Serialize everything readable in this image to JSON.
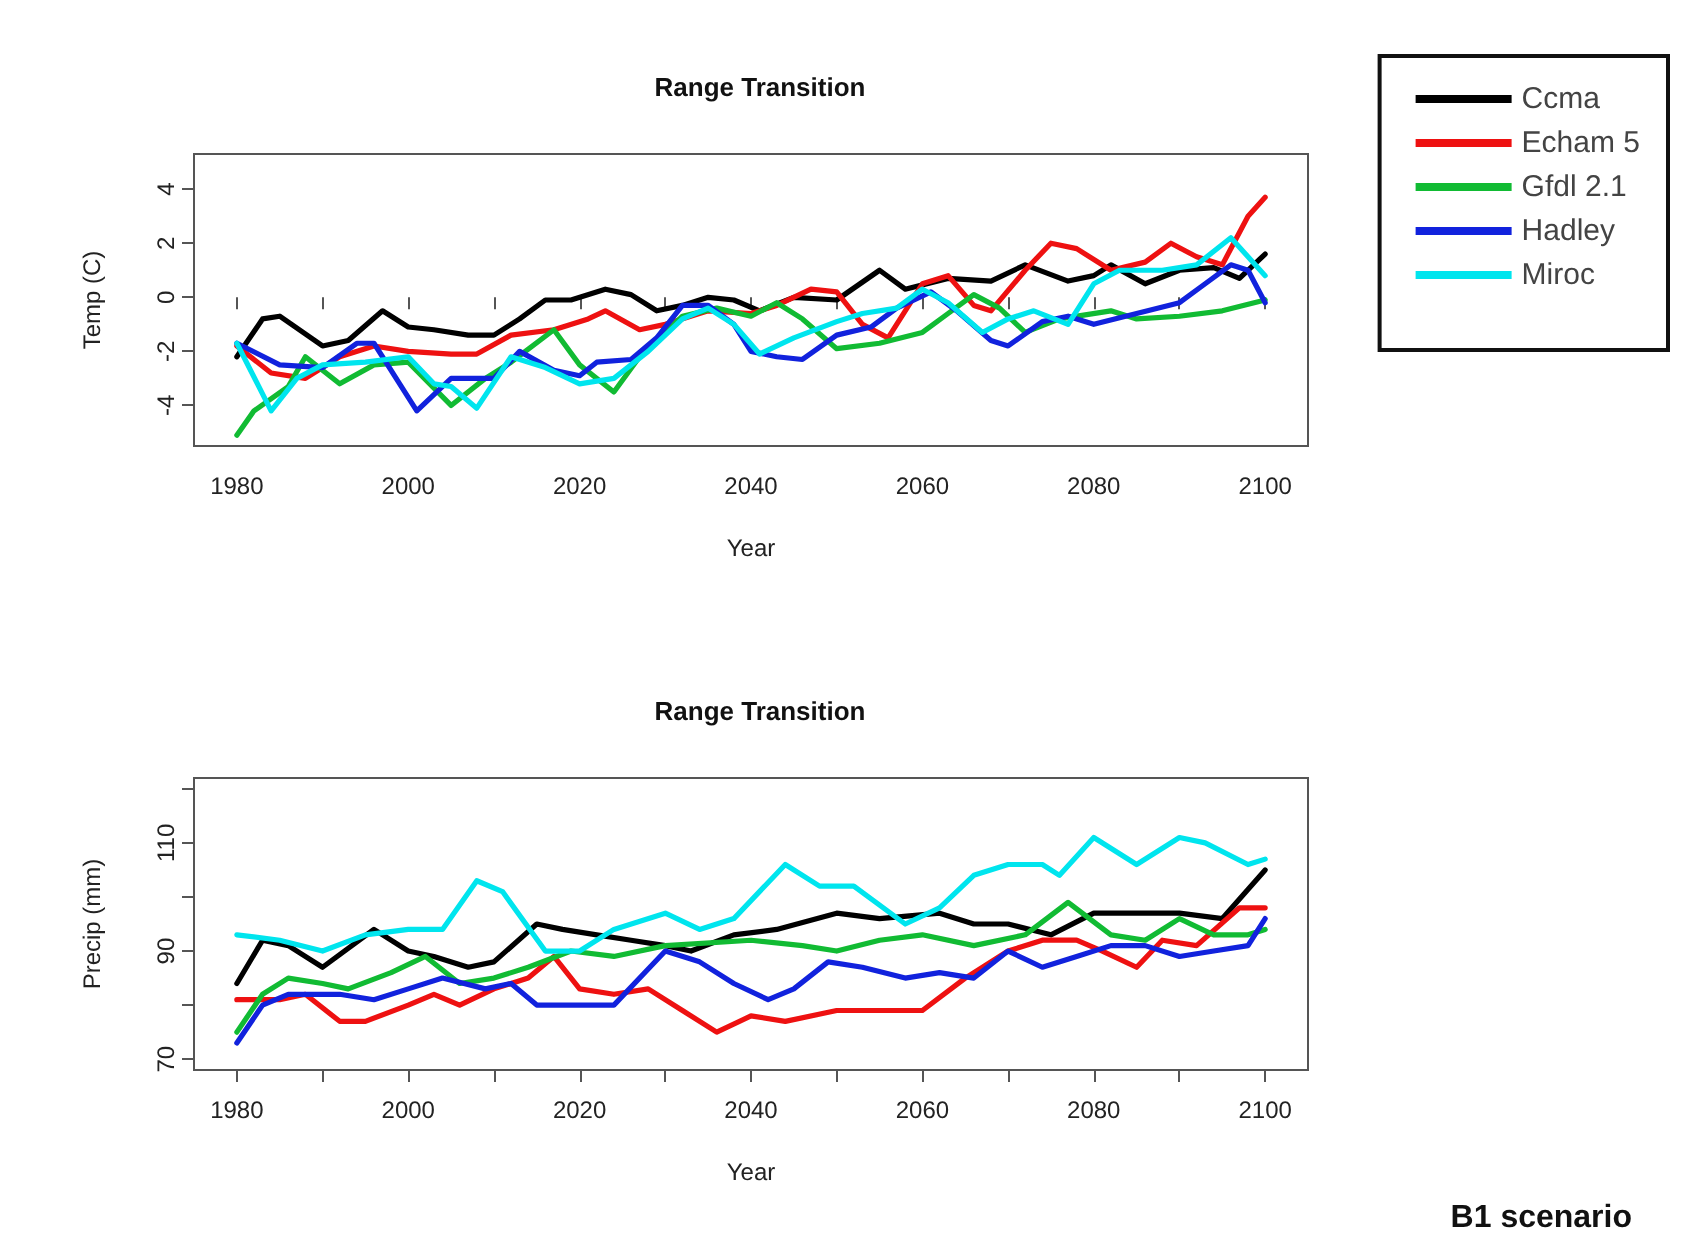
{
  "chart_data": [
    {
      "type": "line",
      "title": "Range Transition",
      "xlabel": "Year",
      "ylabel": "Temp (C)",
      "legend": "top right",
      "grid": false,
      "marker": "none",
      "line_style": "solid",
      "xlim": [
        1975,
        2105
      ],
      "xticks": [
        1980,
        {
          "value": 1990,
          "label": null
        },
        2000,
        {
          "value": 2010,
          "label": null
        },
        2020,
        {
          "value": 2030,
          "label": null
        },
        2040,
        {
          "value": 2050,
          "label": null
        },
        2060,
        {
          "value": 2070,
          "label": null
        },
        2080,
        {
          "value": 2090,
          "label": null
        },
        2100
      ],
      "ylim": [
        -5.5,
        5.3
      ],
      "yticks": [
        -4,
        -2,
        0,
        2,
        4
      ],
      "series": [
        {
          "name": "Ccma",
          "color": "#000000",
          "x": [
            1980,
            1983,
            1985,
            1990,
            1993,
            1997,
            2000,
            2003,
            2007,
            2010,
            2013,
            2016,
            2019,
            2023,
            2026,
            2029,
            2032,
            2035,
            2038,
            2041,
            2045,
            2050,
            2055,
            2058,
            2063,
            2068,
            2072,
            2077,
            2080,
            2082,
            2086,
            2090,
            2094,
            2097,
            2100
          ],
          "values": [
            -2.2,
            -0.8,
            -0.7,
            -1.8,
            -1.6,
            -0.5,
            -1.1,
            -1.2,
            -1.4,
            -1.4,
            -0.8,
            -0.1,
            -0.1,
            0.3,
            0.1,
            -0.5,
            -0.3,
            0,
            -0.1,
            -0.5,
            0,
            -0.1,
            1.0,
            0.3,
            0.7,
            0.6,
            1.2,
            0.6,
            0.8,
            1.2,
            0.5,
            1.0,
            1.1,
            0.7,
            1.6
          ]
        },
        {
          "name": "Echam 5",
          "color": "#ee1111",
          "x": [
            1980,
            1984,
            1988,
            1992,
            1996,
            2000,
            2005,
            2008,
            2012,
            2017,
            2021,
            2023,
            2027,
            2030,
            2035,
            2040,
            2043,
            2047,
            2050,
            2053,
            2056,
            2060,
            2063,
            2066,
            2068,
            2072,
            2075,
            2078,
            2082,
            2086,
            2089,
            2092,
            2095,
            2098,
            2100
          ],
          "values": [
            -1.8,
            -2.8,
            -3.0,
            -2.2,
            -1.8,
            -2.0,
            -2.1,
            -2.1,
            -1.4,
            -1.2,
            -0.8,
            -0.5,
            -1.2,
            -1.0,
            -0.5,
            -0.6,
            -0.3,
            0.3,
            0.2,
            -1.0,
            -1.5,
            0.5,
            0.8,
            -0.3,
            -0.5,
            1.0,
            2.0,
            1.8,
            1.0,
            1.3,
            2.0,
            1.5,
            1.2,
            3.0,
            3.7
          ]
        },
        {
          "name": "Gfdl 2.1",
          "color": "#11bb33",
          "x": [
            1980,
            1982,
            1986,
            1988,
            1992,
            1996,
            2000,
            2005,
            2009,
            2012,
            2017,
            2020,
            2024,
            2027,
            2032,
            2036,
            2040,
            2043,
            2046,
            2050,
            2055,
            2060,
            2063,
            2066,
            2069,
            2072,
            2076,
            2082,
            2085,
            2090,
            2095,
            2100
          ],
          "values": [
            -5.1,
            -4.2,
            -3.3,
            -2.2,
            -3.2,
            -2.5,
            -2.4,
            -4.0,
            -3.0,
            -2.4,
            -1.2,
            -2.5,
            -3.5,
            -2.2,
            -0.7,
            -0.4,
            -0.7,
            -0.2,
            -0.8,
            -1.9,
            -1.7,
            -1.3,
            -0.6,
            0.1,
            -0.4,
            -1.3,
            -0.8,
            -0.5,
            -0.8,
            -0.7,
            -0.5,
            -0.1
          ]
        },
        {
          "name": "Hadley",
          "color": "#1122dd",
          "x": [
            1980,
            1985,
            1990,
            1994,
            1996,
            1999,
            2001,
            2005,
            2010,
            2013,
            2017,
            2020,
            2022,
            2026,
            2029,
            2032,
            2035,
            2038,
            2040,
            2043,
            2046,
            2050,
            2054,
            2057,
            2061,
            2064,
            2068,
            2070,
            2074,
            2077,
            2080,
            2085,
            2090,
            2093,
            2096,
            2098,
            2100
          ],
          "values": [
            -1.7,
            -2.5,
            -2.6,
            -1.7,
            -1.7,
            -3.2,
            -4.2,
            -3.0,
            -3.0,
            -2.0,
            -2.7,
            -2.9,
            -2.4,
            -2.3,
            -1.5,
            -0.3,
            -0.3,
            -1.0,
            -2.0,
            -2.2,
            -2.3,
            -1.4,
            -1.1,
            -0.4,
            0.2,
            -0.5,
            -1.6,
            -1.8,
            -0.9,
            -0.7,
            -1.0,
            -0.6,
            -0.2,
            0.5,
            1.2,
            1.0,
            -0.2
          ]
        },
        {
          "name": "Miroc",
          "color": "#00e5ee",
          "x": [
            1980,
            1984,
            1987,
            1990,
            1995,
            2000,
            2003,
            2005,
            2008,
            2012,
            2016,
            2020,
            2024,
            2028,
            2032,
            2035,
            2038,
            2041,
            2045,
            2050,
            2053,
            2057,
            2060,
            2063,
            2067,
            2070,
            2073,
            2077,
            2080,
            2083,
            2088,
            2092,
            2096,
            2098,
            2100
          ],
          "values": [
            -1.7,
            -4.2,
            -3.0,
            -2.5,
            -2.4,
            -2.2,
            -3.2,
            -3.3,
            -4.1,
            -2.2,
            -2.6,
            -3.2,
            -3.0,
            -2.0,
            -0.8,
            -0.4,
            -1.0,
            -2.1,
            -1.5,
            -0.9,
            -0.6,
            -0.4,
            0.3,
            -0.2,
            -1.3,
            -0.8,
            -0.5,
            -1.0,
            0.5,
            1.0,
            1.0,
            1.2,
            2.2,
            1.5,
            0.8
          ]
        }
      ]
    },
    {
      "type": "line",
      "title": "Range Transition",
      "xlabel": "Year",
      "ylabel": "Precip (mm)",
      "grid": false,
      "marker": "none",
      "line_style": "solid",
      "annotations": [
        "B1 scenario"
      ],
      "xlim": [
        1975,
        2105
      ],
      "xticks": [
        1980,
        {
          "value": 1990,
          "label": null
        },
        2000,
        {
          "value": 2010,
          "label": null
        },
        2020,
        {
          "value": 2030,
          "label": null
        },
        2040,
        {
          "value": 2050,
          "label": null
        },
        2060,
        {
          "value": 2070,
          "label": null
        },
        2080,
        {
          "value": 2090,
          "label": null
        },
        2100
      ],
      "ylim": [
        68,
        122
      ],
      "yticks": [
        70,
        {
          "value": 80,
          "label": null
        },
        90,
        {
          "value": 100,
          "label": null
        },
        110,
        {
          "value": 120,
          "label": null
        }
      ],
      "series": [
        {
          "color": "#000000",
          "x": [
            1980,
            1983,
            1986,
            1990,
            1996,
            2000,
            2003,
            2007,
            2010,
            2015,
            2018,
            2022,
            2026,
            2030,
            2033,
            2038,
            2043,
            2050,
            2055,
            2062,
            2066,
            2070,
            2075,
            2080,
            2085,
            2090,
            2095,
            2100
          ],
          "values": [
            84,
            92,
            91,
            87,
            94,
            90,
            89,
            87,
            88,
            95,
            94,
            93,
            92,
            91,
            90,
            93,
            94,
            97,
            96,
            97,
            95,
            95,
            93,
            97,
            97,
            97,
            96,
            105
          ]
        },
        {
          "color": "#ee1111",
          "x": [
            1980,
            1985,
            1988,
            1992,
            1995,
            2000,
            2003,
            2006,
            2010,
            2014,
            2017,
            2020,
            2024,
            2028,
            2032,
            2036,
            2040,
            2044,
            2050,
            2055,
            2060,
            2065,
            2070,
            2074,
            2078,
            2081,
            2085,
            2088,
            2092,
            2097,
            2100
          ],
          "values": [
            81,
            81,
            82,
            77,
            77,
            80,
            82,
            80,
            83,
            85,
            89,
            83,
            82,
            83,
            79,
            75,
            78,
            77,
            79,
            79,
            79,
            85,
            90,
            92,
            92,
            90,
            87,
            92,
            91,
            98,
            98
          ]
        },
        {
          "color": "#11bb33",
          "x": [
            1980,
            1983,
            1986,
            1990,
            1993,
            1998,
            2002,
            2006,
            2010,
            2014,
            2019,
            2024,
            2030,
            2040,
            2046,
            2050,
            2055,
            2060,
            2066,
            2072,
            2077,
            2082,
            2086,
            2090,
            2094,
            2098,
            2100
          ],
          "values": [
            75,
            82,
            85,
            84,
            83,
            86,
            89,
            84,
            85,
            87,
            90,
            89,
            91,
            92,
            91,
            90,
            92,
            93,
            91,
            93,
            99,
            93,
            92,
            96,
            93,
            93,
            94
          ]
        },
        {
          "color": "#1122dd",
          "x": [
            1980,
            1983,
            1986,
            1992,
            1996,
            2000,
            2004,
            2009,
            2012,
            2015,
            2020,
            2024,
            2030,
            2034,
            2038,
            2042,
            2045,
            2049,
            2053,
            2058,
            2062,
            2066,
            2070,
            2074,
            2078,
            2082,
            2086,
            2090,
            2094,
            2098,
            2100
          ],
          "values": [
            73,
            80,
            82,
            82,
            81,
            83,
            85,
            83,
            84,
            80,
            80,
            80,
            90,
            88,
            84,
            81,
            83,
            88,
            87,
            85,
            86,
            85,
            90,
            87,
            89,
            91,
            91,
            89,
            90,
            91,
            96
          ]
        },
        {
          "color": "#00e5ee",
          "x": [
            1980,
            1985,
            1990,
            1995,
            2000,
            2004,
            2008,
            2011,
            2016,
            2020,
            2024,
            2030,
            2034,
            2038,
            2044,
            2048,
            2052,
            2058,
            2062,
            2066,
            2070,
            2074,
            2076,
            2080,
            2085,
            2090,
            2093,
            2098,
            2100
          ],
          "values": [
            93,
            92,
            90,
            93,
            94,
            94,
            103,
            101,
            90,
            90,
            94,
            97,
            94,
            96,
            106,
            102,
            102,
            95,
            98,
            104,
            106,
            106,
            104,
            111,
            106,
            111,
            110,
            106,
            107
          ]
        }
      ]
    }
  ]
}
